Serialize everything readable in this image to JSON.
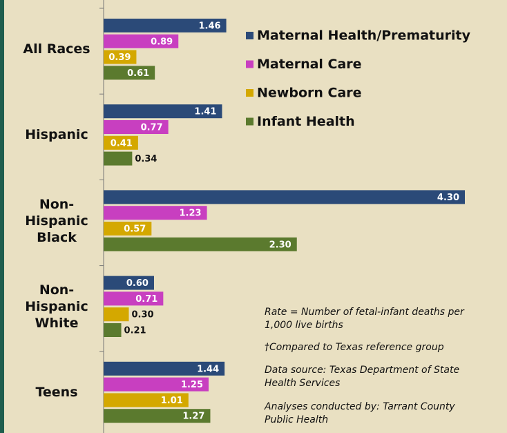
{
  "chart_data": {
    "type": "bar",
    "orientation": "horizontal",
    "categories": [
      "All Races",
      "Hispanic",
      "Non-Hispanic Black",
      "Non-Hispanic White",
      "Teens"
    ],
    "series": [
      {
        "name": "Maternal Health/Prematurity",
        "color": "#2b4a78",
        "values": [
          1.46,
          1.41,
          4.3,
          0.6,
          1.44
        ],
        "value_labels": [
          "1.46",
          "1.41",
          "4.30",
          "0.60",
          "1.44"
        ]
      },
      {
        "name": "Maternal Care",
        "color": "#c83fc0",
        "values": [
          0.89,
          0.77,
          1.23,
          0.71,
          1.25
        ],
        "value_labels": [
          "0.89",
          "0.77",
          "1.23",
          "0.71",
          "1.25"
        ]
      },
      {
        "name": "Newborn Care",
        "color": "#d4a800",
        "values": [
          0.39,
          0.41,
          0.57,
          0.3,
          1.01
        ],
        "value_labels": [
          "0.39",
          "0.41",
          "0.57",
          "0.30",
          "1.01"
        ]
      },
      {
        "name": "Infant Health",
        "color": "#5b7a2e",
        "values": [
          0.61,
          0.34,
          2.3,
          0.21,
          1.27
        ],
        "value_labels": [
          "0.61",
          "0.34",
          "2.30",
          "0.21",
          "1.27"
        ]
      }
    ],
    "xlim": [
      0,
      4.3
    ],
    "notes": [
      "Rate = Number of fetal-infant deaths per 1,000 live births",
      "†Compared to Texas reference group",
      "Data source: Texas Department of State Health Services",
      "Analyses conducted by: Tarrant County Public Health"
    ]
  }
}
